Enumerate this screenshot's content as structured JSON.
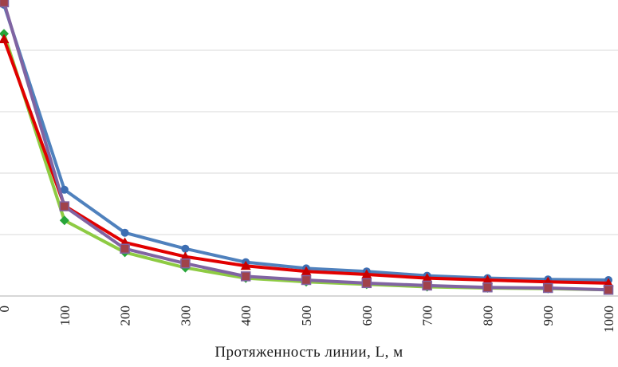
{
  "chart_data": {
    "type": "line",
    "title": "",
    "xlabel": "Протяженность линии, L, м",
    "ylabel": "",
    "x": [
      0,
      100,
      200,
      300,
      400,
      500,
      600,
      700,
      800,
      900,
      1000
    ],
    "x_tick_labels": [
      "0",
      "100",
      "200",
      "300",
      "400",
      "500",
      "600",
      "700",
      "800",
      "900",
      "1000"
    ],
    "xlim": [
      0,
      1000
    ],
    "ylim_relative_units": [
      0,
      5
    ],
    "y_axis_tick_labels_visible": false,
    "grid": "horizontal",
    "gridline_values": [
      1,
      2,
      3,
      4
    ],
    "legend_position": "none",
    "series": [
      {
        "name": "series-blue-circle",
        "marker": "circle",
        "line_color": "#4F81BD",
        "marker_color": "#3D6EB2",
        "values": [
          4.74,
          1.73,
          1.03,
          0.77,
          0.55,
          0.45,
          0.4,
          0.33,
          0.29,
          0.27,
          0.26
        ]
      },
      {
        "name": "series-green-diamond",
        "marker": "diamond",
        "line_color": "#8ECB43",
        "marker_color": "#27A539",
        "values": [
          4.27,
          1.23,
          0.71,
          0.46,
          0.29,
          0.23,
          0.19,
          0.15,
          0.13,
          0.12,
          0.1
        ]
      },
      {
        "name": "series-red-triangle",
        "marker": "triangle",
        "line_color": "#E10000",
        "marker_color": "#C80000",
        "values": [
          4.18,
          1.47,
          0.87,
          0.64,
          0.49,
          0.4,
          0.35,
          0.29,
          0.26,
          0.23,
          0.21
        ]
      },
      {
        "name": "series-purple-square",
        "marker": "square",
        "line_color": "#8064A2",
        "marker_color": "#A0424A",
        "marker_stroke": "#8064A2",
        "values": [
          4.78,
          1.46,
          0.77,
          0.53,
          0.32,
          0.26,
          0.21,
          0.17,
          0.14,
          0.13,
          0.1
        ]
      }
    ],
    "colors": {
      "background": "#FFFFFF",
      "gridline": "#D9D9D9",
      "axis_line": "#BFBFBF",
      "tick_text": "#1A1A1A"
    }
  }
}
